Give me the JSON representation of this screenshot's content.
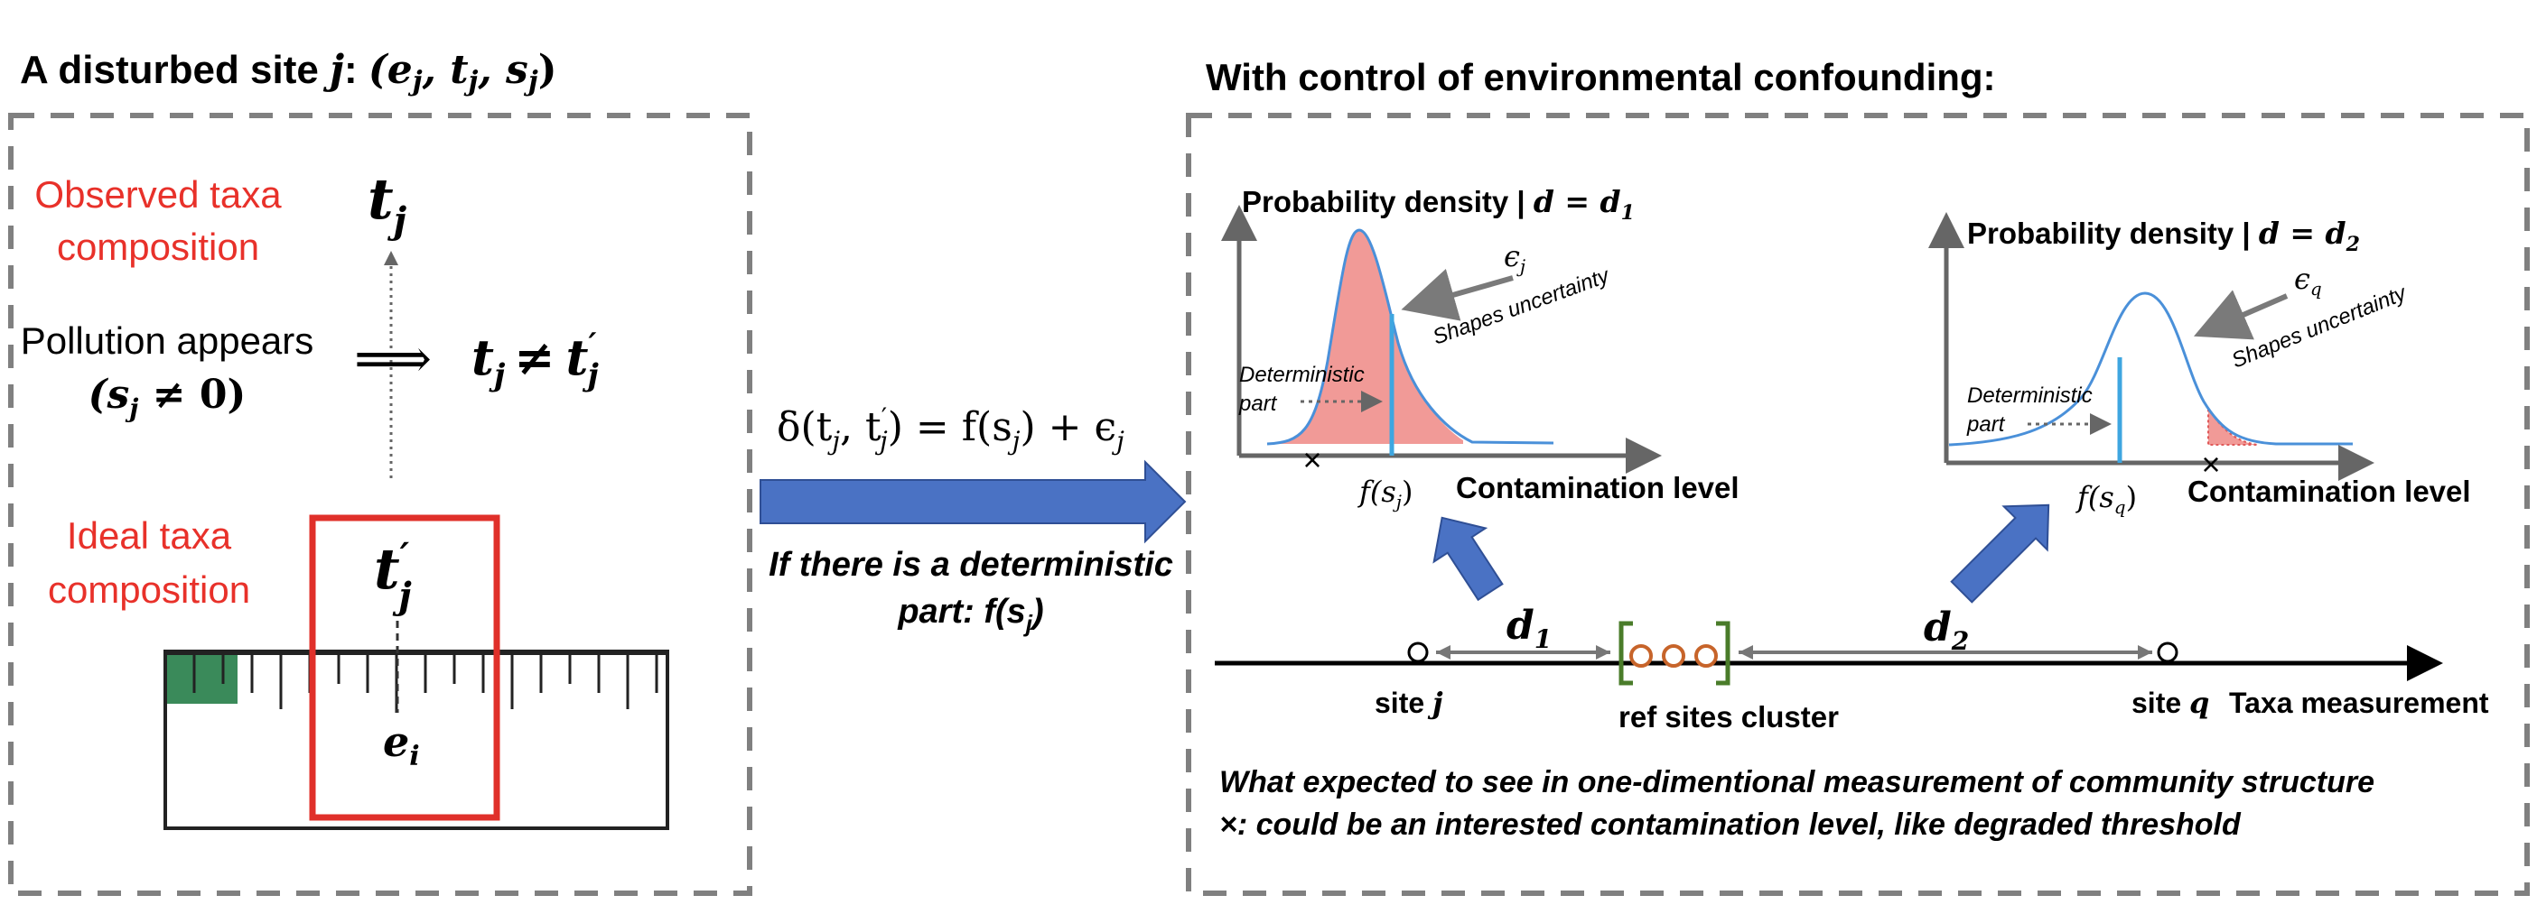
{
  "left_panel": {
    "title_prefix": "A disturbed site ",
    "title_symbol": "j",
    "title_colon": ": ",
    "title_tuple": "(e",
    "title_tuple_2": ", t",
    "title_tuple_3": ", s",
    "title_tuple_close": ")",
    "title_sub_j1": "j",
    "title_sub_j2": "j",
    "title_sub_j3": "j",
    "observed_label_line1": "Observed taxa",
    "observed_label_line2": "composition",
    "t_j": "t",
    "t_j_sub": "j",
    "pollution_line1": "Pollution appears",
    "pollution_line2_open": "(s",
    "pollution_line2_sub": "j",
    "pollution_line2_rest": " ≠ 0)",
    "implies": "⟹",
    "inequality_t": "t",
    "inequality_sub": "j",
    "inequality_neq": "≠",
    "inequality_t2": "t",
    "inequality_prime": "′",
    "inequality_sub2": "j",
    "ideal_label_line1": "Ideal taxa",
    "ideal_label_line2": "composition",
    "t_prime": "t",
    "t_prime_mark": "′",
    "t_prime_sub": "j",
    "e_i": "e",
    "e_i_sub": "i"
  },
  "middle": {
    "equation": "δ(t",
    "equation_sub1": "j",
    "equation_mid": ", t",
    "equation_prime": "′",
    "equation_sub2": "j",
    "equation_rest": ") = f(s",
    "equation_sub3": "j",
    "equation_end": ") + ϵ",
    "equation_sub4": "j",
    "caption_line1": "If there is a deterministic",
    "caption_line2_a": "part:  f(s",
    "caption_line2_sub": "j",
    "caption_line2_b": ")"
  },
  "right_panel": {
    "title": "With control of environmental confounding:",
    "chart1": {
      "title": "Probability density | ",
      "title_math": "d = d",
      "title_sub": "1",
      "eps": "ϵ",
      "eps_sub": "j",
      "shapes_text": "Shapes uncertainty",
      "deterministic_line1": "Deterministic",
      "deterministic_line2": "part",
      "fx": "f(s",
      "fx_sub": "j",
      "fx_close": ")",
      "x_label": "Contamination level",
      "marker": "×"
    },
    "chart2": {
      "title": "Probability density | ",
      "title_math": "d = d",
      "title_sub": "2",
      "eps": "ϵ",
      "eps_sub": "q",
      "shapes_text": "Shapes uncertainty",
      "deterministic_line1": "Deterministic",
      "deterministic_line2": "part",
      "fx": "f(s",
      "fx_sub": "q",
      "fx_close": ")",
      "x_label": "Contamination level",
      "marker": "×"
    },
    "axis": {
      "d1": "d",
      "d1_sub": "1",
      "d2": "d",
      "d2_sub": "2",
      "site_j": "site ",
      "site_j_sym": "j",
      "ref_cluster": "ref sites cluster",
      "site_q": "site ",
      "site_q_sym": "q",
      "axis_label": "Taxa measurement"
    },
    "note_line1": "What expected to see in one-dimentional measurement of community structure",
    "note_line2": "×: could be an interested contamination level, like degraded threshold"
  },
  "colors": {
    "red_label": "#e8312a",
    "red_box": "#e0302a",
    "blue_arrow": "#4a72c4",
    "pink_fill": "#f19a97",
    "curve_blue": "#4a90d9",
    "vline_blue": "#3ea6e0",
    "green_bracket": "#4a7c2a",
    "orange_circle": "#c7642a",
    "ruler_green": "#3a8a5a",
    "dash_gray": "#808080"
  }
}
